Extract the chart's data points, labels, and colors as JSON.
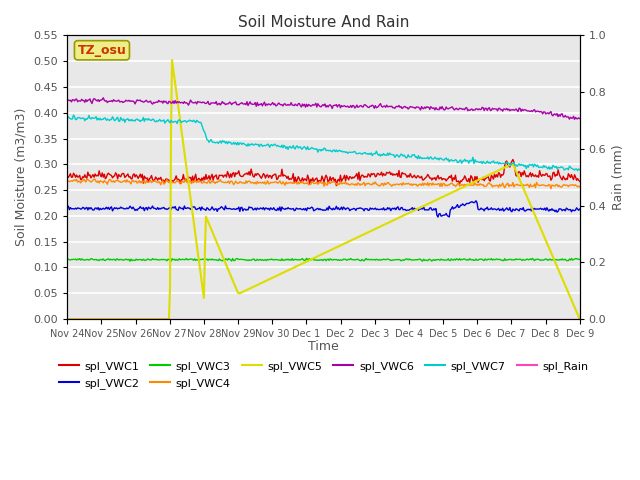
{
  "title": "Soil Moisture And Rain",
  "xlabel": "Time",
  "ylabel_left": "Soil Moisture (m3/m3)",
  "ylabel_right": "Rain (mm)",
  "ylim_left": [
    0.0,
    0.55
  ],
  "ylim_right": [
    0.0,
    1.0
  ],
  "annotation_text": "TZ_osu",
  "annotation_bg": "#eeee88",
  "annotation_edge": "#999900",
  "annotation_text_color": "#cc3300",
  "bg_color": "#e8e8e8",
  "series": {
    "spl_VWC1": {
      "color": "#dd0000",
      "lw": 1.0
    },
    "spl_VWC2": {
      "color": "#0000dd",
      "lw": 1.0
    },
    "spl_VWC3": {
      "color": "#00cc00",
      "lw": 1.0
    },
    "spl_VWC4": {
      "color": "#ff8800",
      "lw": 1.0
    },
    "spl_VWC5": {
      "color": "#dddd00",
      "lw": 1.5
    },
    "spl_VWC6": {
      "color": "#aa00aa",
      "lw": 1.0
    },
    "spl_VWC7": {
      "color": "#00cccc",
      "lw": 1.0
    },
    "spl_Rain": {
      "color": "#ff44bb",
      "lw": 1.0
    }
  },
  "legend_row1": [
    "spl_VWC1",
    "spl_VWC2",
    "spl_VWC3",
    "spl_VWC4",
    "spl_VWC5",
    "spl_VWC6"
  ],
  "legend_row2": [
    "spl_VWC7",
    "spl_Rain"
  ],
  "x_tick_labels": [
    "Nov 24",
    "Nov 25",
    "Nov 26",
    "Nov 27",
    "Nov 28",
    "Nov 29",
    "Nov 30",
    "Dec 1",
    "Dec 2",
    "Dec 3",
    "Dec 4",
    "Dec 5",
    "Dec 6",
    "Dec 7",
    "Dec 8",
    "Dec 9"
  ],
  "yticks_left": [
    0.0,
    0.05,
    0.1,
    0.15,
    0.2,
    0.25,
    0.3,
    0.35,
    0.4,
    0.45,
    0.5,
    0.55
  ],
  "yticks_right": [
    0.0,
    0.2,
    0.4,
    0.6,
    0.8,
    1.0
  ]
}
